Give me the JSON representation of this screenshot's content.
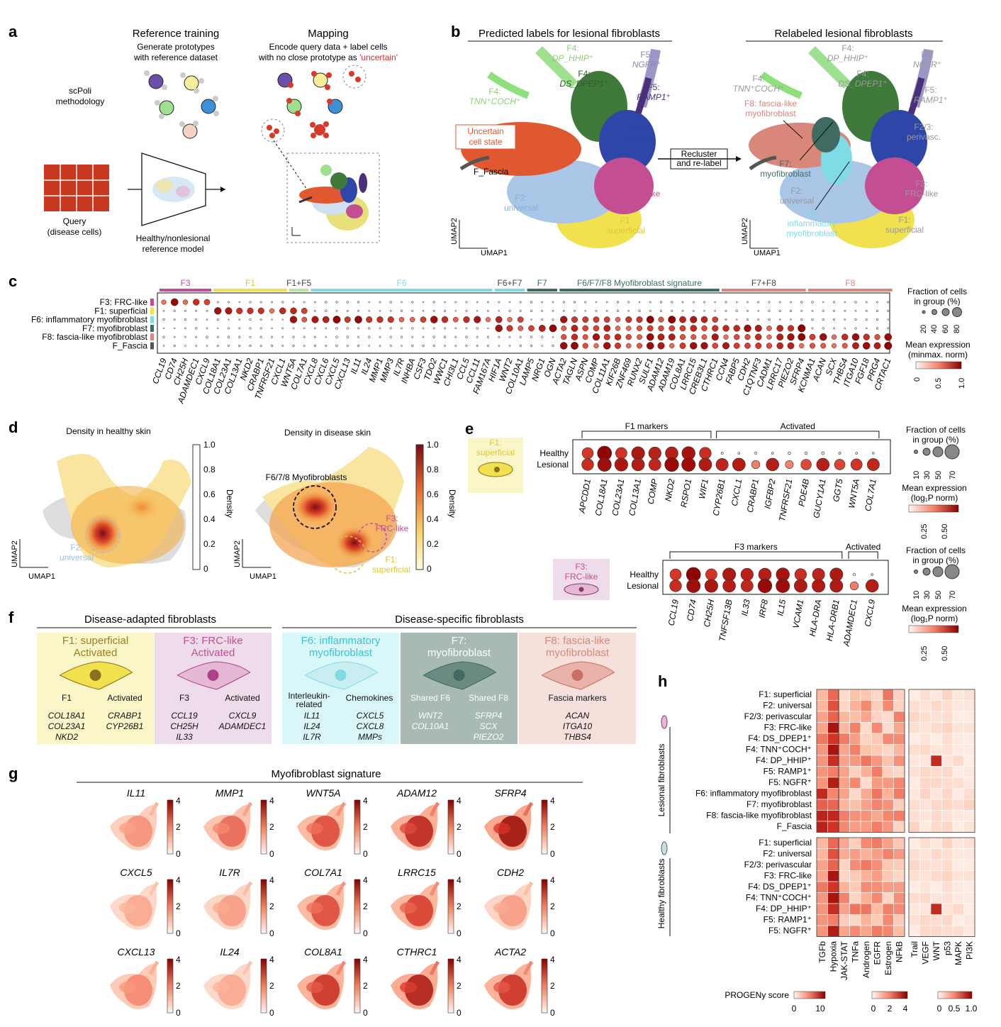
{
  "colors": {
    "F1": "#f2e14f",
    "F2": "#9dbde0",
    "F23": "#2d46a8",
    "F3": "#c44e92",
    "F4dp": "#9ee08f",
    "F4ds": "#3f7a3a",
    "F4tnn": "#8ee07a",
    "F5n": "#9b97c7",
    "F5r": "#4b2f7a",
    "F6": "#7fdbe6",
    "F7": "#3f6b63",
    "F8": "#d9877b",
    "uncertain": "#e0582f",
    "fascia": "#555555",
    "heatHigh": "#8b0000"
  },
  "panel_a": {
    "label": "a",
    "ref_title": "Reference training",
    "ref_sub": [
      "Generate prototypes",
      "with reference dataset"
    ],
    "map_title": "Mapping",
    "map_sub1": "Encode query data + label cells",
    "map_sub2_pre": "with no close prototype as ",
    "map_sub2_red": "'uncertain'",
    "method": [
      "scPoli",
      "methodology"
    ],
    "query": [
      "Query",
      "(disease cells)"
    ],
    "model": [
      "Healthy/nonlesional",
      "reference model"
    ]
  },
  "panel_b": {
    "label": "b",
    "title_left": "Predicted labels for lesional fibroblasts",
    "title_right": "Relabeled lesional fibroblasts",
    "arrow_text": [
      "Recluster",
      "and re-label"
    ],
    "umap1": "UMAP1",
    "umap2": "UMAP2",
    "left_labels": [
      {
        "t1": "F4:",
        "t2": "DP_HHIP⁺",
        "color": "#8fcf77",
        "italic2": true
      },
      {
        "t1": "F4:",
        "t2": "DS_DPEP1⁺",
        "color": "#2f5a2b",
        "italic2": true
      },
      {
        "t1": "F5:",
        "t2": "NGFR⁺",
        "color": "#8a86b5",
        "italic2": true
      },
      {
        "t1": "F5:",
        "t2": "RAMP1⁺",
        "color": "#4b2f7a",
        "italic2": true
      },
      {
        "t1": "F4:",
        "t2": "TNN⁺COCH⁺",
        "color": "#8fcf77",
        "italic2": true
      },
      {
        "t1": "F2/3:",
        "t2": "perivasc.",
        "color": "#2d46a8",
        "italic2": false
      },
      {
        "t1": "F3:",
        "t2": "FRC-like",
        "color": "#c44e92",
        "italic2": false
      },
      {
        "t1": "F2:",
        "t2": "universal",
        "color": "#8aaed6",
        "italic2": false
      },
      {
        "t1": "F1:",
        "t2": "superficial",
        "color": "#e3c532",
        "italic2": false
      }
    ],
    "uncertain": [
      "Uncertain",
      "cell state"
    ],
    "fascia": "F_Fascia",
    "right_labels": [
      {
        "t1": "F4:",
        "t2": "DP_HHIP⁺"
      },
      {
        "t1": "F4:",
        "t2": "DS_DPEP1⁺"
      },
      {
        "t1": "F5:",
        "t2": "NGFR⁺"
      },
      {
        "t1": "F4:",
        "t2": "TNN⁺COCH⁺"
      },
      {
        "t1": "F5:",
        "t2": "RAMP1⁺"
      },
      {
        "t1": "F2/3:",
        "t2": "perivasc."
      },
      {
        "t1": "F3:",
        "t2": "FRC-like"
      },
      {
        "t1": "F2:",
        "t2": "universal"
      },
      {
        "t1": "F1:",
        "t2": "superficial"
      }
    ],
    "f8": [
      "F8: fascia-like",
      "myofibroblast"
    ],
    "f7": [
      "F7:",
      "myofibroblast"
    ],
    "f6": [
      "F6:",
      "inflammatory",
      "myofibroblast"
    ]
  },
  "panel_c": {
    "label": "c",
    "groups": [
      "F3",
      "F1",
      "F1+F5",
      "F6",
      "F6+F7",
      "F7",
      "F6/F7/F8 Myofibroblast signature",
      "F7+F8",
      "F8"
    ],
    "rows": [
      "F3: FRC-like",
      "F1: superficial",
      "F6: inflammatory myofibroblast",
      "F7: myofibroblast",
      "F8: fascia-like myofibroblast",
      "F_Fascia"
    ],
    "genes": [
      "CCL19",
      "CD74",
      "CH25H",
      "ADAMDEC1",
      "CXCL9",
      "COL18A1",
      "COL23A1",
      "COL13A1",
      "NKD2",
      "CRABP1",
      "TNFRSF21",
      "CXCL1",
      "WNT5A",
      "COL7A1",
      "CXCL8",
      "CXCL6",
      "CXCL5",
      "CXCL13",
      "IL11",
      "IL24",
      "MMP1",
      "MMP3",
      "IL7R",
      "INHBA",
      "CSF3",
      "TDO2",
      "WWC1",
      "CHI3L1",
      "CCL5",
      "CCL11",
      "FAM167A",
      "HIF1A",
      "WNT2",
      "COL10A1",
      "LAMP5",
      "NRG1",
      "OGN",
      "ACTA2",
      "TAGLN",
      "ASPN",
      "COMP",
      "COL11A1",
      "KIF26B",
      "ZNF469",
      "RUNX2",
      "SULF1",
      "ADAM12",
      "ADAM19",
      "COL8A1",
      "LRRC15",
      "CREB3L1",
      "CTHRC1",
      "CCN4",
      "FABP5",
      "CDH2",
      "C1QTNF3",
      "CADM1",
      "LRRC17",
      "PIEZO2",
      "SFRP4",
      "KCNMA1",
      "ACAN",
      "SCX",
      "THBS4",
      "ITGA10",
      "FGF18",
      "PRG4",
      "CRTAC1"
    ],
    "legend_frac": [
      "Fraction of cells",
      "in group (%)"
    ],
    "legend_frac_ticks": [
      "20",
      "40",
      "60",
      "80"
    ],
    "legend_expr": [
      "Mean expression",
      "(minmax. norm)"
    ],
    "legend_expr_ticks": [
      "0",
      "0.5",
      "1.0"
    ]
  },
  "panel_d": {
    "label": "d",
    "title_left": "Density in healthy skin",
    "title_right": "Density in disease skin",
    "density": "Density",
    "ticks": [
      "1.0",
      "0.8",
      "0.6",
      "0.4",
      "0.2",
      "0"
    ],
    "f2": [
      "F2:",
      "universal"
    ],
    "myo": "F6/7/8 Myofibroblasts",
    "f3": [
      "F3:",
      "FRC-like"
    ],
    "f1": [
      "F1:",
      "superficial"
    ],
    "umap1": "UMAP1",
    "umap2": "UMAP2"
  },
  "panel_e": {
    "label": "e",
    "f1_label": [
      "F1:",
      "superficial"
    ],
    "f3_label": [
      "F3:",
      "FRC-like"
    ],
    "rows": [
      "Healthy",
      "Lesional"
    ],
    "top_groups": [
      "F1 markers",
      "Activated"
    ],
    "top_genes": [
      "APCDD1",
      "COL18A1",
      "COL23A1",
      "COL13A1",
      "COMP",
      "NKD2",
      "RSPO1",
      "WIF1",
      "CYP26B1",
      "CXCL1",
      "CRABP1",
      "IGFBP2",
      "TNFRSF21",
      "PDE4B",
      "GUCY1A1",
      "GGT5",
      "WNT5A",
      "COL7A1"
    ],
    "bot_groups": [
      "F3 markers",
      "Activated"
    ],
    "bot_genes": [
      "CCL19",
      "CD74",
      "CH25H",
      "TNFSF13B",
      "IL33",
      "IRF8",
      "IL15",
      "VCAM1",
      "HLA-DRA",
      "HLA-DRB1",
      "ADAMDEC1",
      "CXCL9"
    ],
    "legend_frac": [
      "Fraction of cells",
      "in group (%)"
    ],
    "legend_frac_ticks": [
      "10",
      "30",
      "50",
      "70"
    ],
    "legend_expr": [
      "Mean expression",
      "(log₁P norm)"
    ],
    "legend_expr_ticks": [
      "0.25",
      "0.50"
    ]
  },
  "panel_f": {
    "label": "f",
    "adapted": "Disease-adapted fibroblasts",
    "specific": "Disease-specific fibroblasts",
    "boxes": [
      {
        "title": [
          "F1: superficial",
          "Activated"
        ],
        "sub": [
          "F1",
          "Activated"
        ],
        "genesL": [
          "COL18A1",
          "COL23A1",
          "NKD2"
        ],
        "genesR": [
          "CRABP1",
          "CYP26B1"
        ]
      },
      {
        "title": [
          "F3: FRC-like",
          "Activated"
        ],
        "sub": [
          "F3",
          "Activated"
        ],
        "genesL": [
          "CCL19",
          "CH25H",
          "IL33"
        ],
        "genesR": [
          "CXCL9",
          "ADAMDEC1"
        ]
      },
      {
        "title": [
          "F6: inflammatory",
          "myofibroblast"
        ],
        "sub": [
          "Interleukin-",
          "related",
          "Chemokines"
        ],
        "genesL": [
          "IL11",
          "IL24",
          "IL7R"
        ],
        "genesR": [
          "CXCL5",
          "CXCL8",
          "MMPs"
        ]
      },
      {
        "title": [
          "F7:",
          "myofibroblast"
        ],
        "sub": [
          "Shared F6",
          "Shared F8"
        ],
        "genesL": [
          "WNT2",
          "COL10A1"
        ],
        "genesR": [
          "SFRP4",
          "SCX",
          "PIEZO2"
        ]
      },
      {
        "title": [
          "F8: fascia-like",
          "myofibroblast"
        ],
        "sub": [
          "Fascia markers"
        ],
        "genesL": [
          "ACAN",
          "ITGA10",
          "THBS4"
        ],
        "genesR": []
      }
    ]
  },
  "panel_g": {
    "label": "g",
    "title": "Myofibroblast signature",
    "genes": [
      "IL11",
      "MMP1",
      "WNT5A",
      "ADAM12",
      "SFRP4",
      "CXCL5",
      "IL7R",
      "COL7A1",
      "LRRC15",
      "CDH2",
      "CXCL13",
      "IL24",
      "COL8A1",
      "CTHRC1",
      "ACTA2"
    ],
    "intensity": [
      0.45,
      0.6,
      0.7,
      0.85,
      0.95,
      0.35,
      0.4,
      0.7,
      0.75,
      0.4,
      0.5,
      0.35,
      0.8,
      0.9,
      0.8
    ],
    "ticks": [
      "4",
      "2",
      "0"
    ]
  },
  "panel_h": {
    "label": "h",
    "lesional_title": "Lesional fibroblasts",
    "healthy_title": "Healthy fibroblasts",
    "lesional_rows": [
      "F1: superficial",
      "F2: universal",
      "F2/3: perivascular",
      "F3: FRC-like",
      "F4: DS_DPEP1⁺",
      "F4: TNN⁺COCH⁺",
      "F4: DP_HHIP⁺",
      "F5: RAMP1⁺",
      "F5: NGFR⁺",
      "F6: inflammatory myofibroblast",
      "F7: myofibroblast",
      "F8: fascia-like myofibroblast",
      "F_Fascia"
    ],
    "healthy_rows": [
      "F1: superficial",
      "F2: universal",
      "F2/3: perivascular",
      "F3: FRC-like",
      "F4: DS_DPEP1⁺",
      "F4: TNN⁺COCH⁺",
      "F4: DP_HHIP⁺",
      "F5: RAMP1⁺",
      "F5: NGFR⁺"
    ],
    "cols_a": [
      "TGFb",
      "Hypoxia"
    ],
    "cols_b": [
      "JAK-STAT",
      "TNFa",
      "Androgen",
      "EGFR",
      "Estrogen",
      "NFkB"
    ],
    "cols_c": [
      "Trail",
      "VEGF",
      "WNT",
      "p53",
      "MAPK",
      "PI3K"
    ],
    "scale_label": "PROGENy score",
    "scale_a": [
      "0",
      "10"
    ],
    "scale_b": [
      "0",
      "2",
      "4"
    ],
    "scale_c": [
      "0",
      "0.5",
      "1.0"
    ]
  }
}
